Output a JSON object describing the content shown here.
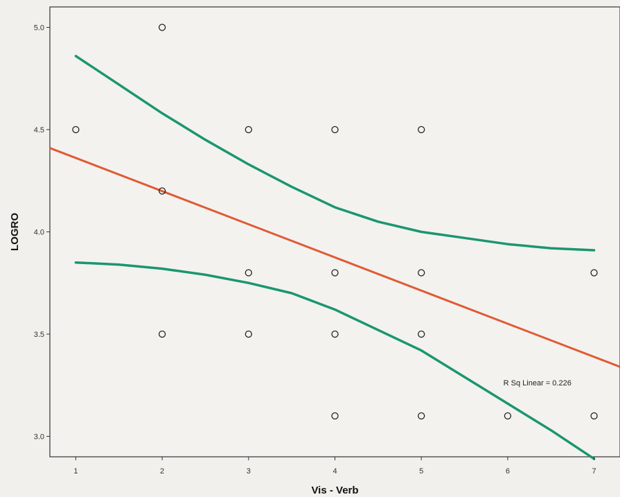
{
  "chart_data": {
    "type": "scatter",
    "xlabel": "Vis - Verb",
    "ylabel": "LOGRO",
    "xlim": [
      0.7,
      7.3
    ],
    "ylim": [
      2.9,
      5.1
    ],
    "x_ticks": [
      1,
      2,
      3,
      4,
      5,
      6,
      7
    ],
    "x_tick_labels": [
      "1",
      "2",
      "3",
      "4",
      "5",
      "6",
      "7"
    ],
    "y_ticks": [
      3.0,
      3.5,
      4.0,
      4.5,
      5.0
    ],
    "y_tick_labels": [
      "3.0",
      "3.5",
      "4.0",
      "4.5",
      "5.0"
    ],
    "grid": false,
    "points": [
      {
        "x": 1,
        "y": 4.5
      },
      {
        "x": 2,
        "y": 5.0
      },
      {
        "x": 2,
        "y": 4.2
      },
      {
        "x": 2,
        "y": 3.5
      },
      {
        "x": 3,
        "y": 4.5
      },
      {
        "x": 3,
        "y": 3.8
      },
      {
        "x": 3,
        "y": 3.5
      },
      {
        "x": 4,
        "y": 4.5
      },
      {
        "x": 4,
        "y": 3.8
      },
      {
        "x": 4,
        "y": 3.5
      },
      {
        "x": 4,
        "y": 3.1
      },
      {
        "x": 5,
        "y": 4.5
      },
      {
        "x": 5,
        "y": 3.8
      },
      {
        "x": 5,
        "y": 3.5
      },
      {
        "x": 5,
        "y": 3.1
      },
      {
        "x": 6,
        "y": 3.1
      },
      {
        "x": 7,
        "y": 3.8
      },
      {
        "x": 7,
        "y": 3.1
      }
    ],
    "fit_line": {
      "x": [
        0.7,
        7.3
      ],
      "y": [
        4.41,
        3.34
      ],
      "color": "#e05a35"
    },
    "confidence_bands": {
      "color": "#1a9670",
      "upper": {
        "x": [
          1,
          1.5,
          2,
          2.5,
          3,
          3.5,
          4,
          4.5,
          5,
          5.5,
          6,
          6.5,
          7
        ],
        "y": [
          4.86,
          4.72,
          4.58,
          4.45,
          4.33,
          4.22,
          4.12,
          4.05,
          4.0,
          3.97,
          3.94,
          3.92,
          3.91
        ]
      },
      "lower": {
        "x": [
          1,
          1.5,
          2,
          2.5,
          3,
          3.5,
          4,
          4.5,
          5,
          5.5,
          6,
          6.5,
          7
        ],
        "y": [
          3.85,
          3.84,
          3.82,
          3.79,
          3.75,
          3.7,
          3.62,
          3.52,
          3.42,
          3.29,
          3.16,
          3.03,
          2.89
        ]
      }
    },
    "annotation": "R Sq Linear = 0.226"
  }
}
